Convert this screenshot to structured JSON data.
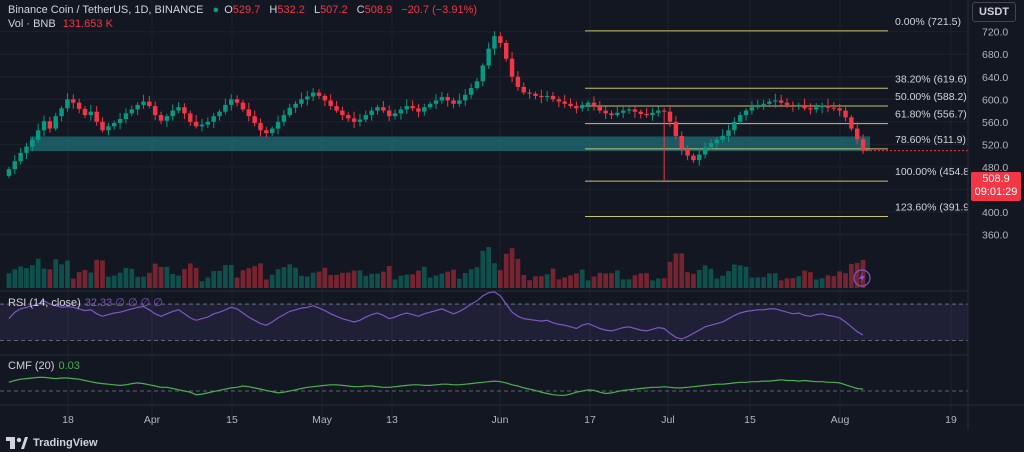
{
  "header": {
    "title": "Binance Coin / TetherUS, 1D, BINANCE",
    "o_label": "O",
    "o": "529.7",
    "h_label": "H",
    "h": "532.2",
    "l_label": "L",
    "l": "507.2",
    "c_label": "C",
    "c": "508.9",
    "change": "−20.7 (−3.91%)",
    "vol_label": "Vol · BNB",
    "vol": "131.653 K"
  },
  "currency": "USDT",
  "last_price": {
    "value": "508.9",
    "countdown": "09:01:29"
  },
  "branding": "TradingView",
  "colors": {
    "up": "#089981",
    "down": "#f23645",
    "fib": "#c9c26a",
    "zone": "#1f6f78",
    "rsi": "#7e57c2",
    "cmf": "#4caf50",
    "bg": "#131722"
  },
  "chart_data": [
    {
      "type": "candlestick",
      "title": "Binance Coin / TetherUS, 1D, BINANCE",
      "ylim": [
        360,
        740
      ],
      "y_ticks": [
        "720.0",
        "680.0",
        "640.0",
        "600.0",
        "560.0",
        "520.0",
        "480.0",
        "440.0",
        "400.0",
        "360.0"
      ],
      "x_ticks": [
        "18",
        "Apr",
        "15",
        "May",
        "13",
        "Jun",
        "17",
        "Jul",
        "15",
        "Aug",
        "19"
      ],
      "fibonacci": [
        {
          "label": "0.00% (721.5)",
          "value": 721.5
        },
        {
          "label": "38.20% (619.6)",
          "value": 619.6
        },
        {
          "label": "50.00% (588.2)",
          "value": 588.2
        },
        {
          "label": "61.80% (556.7)",
          "value": 556.7
        },
        {
          "label": "78.60% (511.9)",
          "value": 511.9
        },
        {
          "label": "100.00% (454.8)",
          "value": 454.8
        },
        {
          "label": "123.60% (391.9)",
          "value": 391.9
        }
      ],
      "support_zone": [
        508,
        534
      ],
      "close_series": [
        476,
        490,
        505,
        516,
        528,
        545,
        561,
        548,
        570,
        584,
        600,
        594,
        583,
        572,
        578,
        560,
        545,
        552,
        558,
        565,
        575,
        582,
        590,
        596,
        588,
        572,
        562,
        570,
        580,
        586,
        575,
        560,
        552,
        555,
        560,
        570,
        578,
        590,
        600,
        594,
        582,
        570,
        558,
        545,
        540,
        548,
        560,
        572,
        585,
        592,
        600,
        605,
        612,
        606,
        598,
        588,
        580,
        572,
        566,
        560,
        564,
        572,
        580,
        586,
        580,
        570,
        575,
        582,
        588,
        584,
        578,
        586,
        592,
        598,
        604,
        598,
        592,
        598,
        608,
        620,
        632,
        660,
        690,
        712,
        700,
        672,
        640,
        622,
        612,
        610,
        606,
        604,
        606,
        600,
        596,
        592,
        588,
        584,
        590,
        594,
        588,
        580,
        575,
        572,
        576,
        580,
        582,
        578,
        574,
        572,
        576,
        580,
        578,
        560,
        535,
        512,
        500,
        492,
        502,
        515,
        522,
        528,
        535,
        545,
        560,
        572,
        580,
        586,
        590,
        592,
        596,
        598,
        594,
        590,
        588,
        590,
        584,
        582,
        586,
        589,
        585,
        584,
        580,
        568,
        548,
        529,
        509
      ],
      "volume_panel": "histogram of daily volume, last bar 131.653 K BNB"
    },
    {
      "type": "line",
      "title": "RSI (14, close)",
      "legend_values": "32.33 ∅ ∅ ∅ ∅",
      "band": [
        25,
        70
      ],
      "ticks": [
        "75.00",
        "50.00",
        "25.00"
      ],
      "values": [
        52,
        60,
        64,
        66,
        68,
        70,
        74,
        70,
        68,
        66,
        67,
        66,
        64,
        62,
        63,
        58,
        55,
        57,
        59,
        60,
        62,
        64,
        66,
        67,
        63,
        58,
        55,
        58,
        61,
        63,
        58,
        53,
        50,
        52,
        54,
        58,
        60,
        63,
        66,
        64,
        59,
        54,
        50,
        46,
        44,
        48,
        53,
        57,
        61,
        63,
        65,
        66,
        68,
        65,
        62,
        58,
        55,
        52,
        50,
        48,
        50,
        54,
        57,
        59,
        56,
        52,
        54,
        57,
        59,
        57,
        55,
        58,
        60,
        62,
        64,
        61,
        58,
        61,
        65,
        70,
        74,
        80,
        84,
        85,
        80,
        70,
        60,
        55,
        52,
        51,
        50,
        49,
        50,
        47,
        45,
        44,
        42,
        40,
        44,
        46,
        43,
        40,
        38,
        37,
        39,
        41,
        42,
        40,
        38,
        37,
        39,
        41,
        40,
        34,
        29,
        27,
        30,
        34,
        38,
        42,
        44,
        46,
        48,
        52,
        56,
        59,
        61,
        62,
        63,
        63,
        64,
        64,
        62,
        60,
        58,
        59,
        56,
        55,
        57,
        58,
        56,
        55,
        53,
        48,
        42,
        36,
        32
      ]
    },
    {
      "type": "line",
      "title": "CMF (20)",
      "legend_values": "0.03",
      "ticks": [
        "0.50",
        "0.00"
      ],
      "values": [
        0.14,
        0.17,
        0.19,
        0.2,
        0.21,
        0.22,
        0.22,
        0.21,
        0.2,
        0.21,
        0.21,
        0.2,
        0.19,
        0.17,
        0.15,
        0.13,
        0.12,
        0.11,
        0.1,
        0.09,
        0.1,
        0.12,
        0.13,
        0.12,
        0.1,
        0.08,
        0.06,
        0.06,
        0.04,
        0.02,
        0.0,
        -0.02,
        -0.06,
        -0.05,
        -0.03,
        -0.01,
        0.01,
        0.03,
        0.05,
        0.06,
        0.08,
        0.07,
        0.05,
        0.03,
        0.01,
        -0.01,
        -0.03,
        -0.02,
        0.0,
        0.02,
        0.04,
        0.06,
        0.07,
        0.08,
        0.09,
        0.1,
        0.1,
        0.09,
        0.08,
        0.07,
        0.07,
        0.08,
        0.08,
        0.07,
        0.06,
        0.06,
        0.07,
        0.08,
        0.09,
        0.1,
        0.1,
        0.09,
        0.09,
        0.1,
        0.11,
        0.11,
        0.1,
        0.1,
        0.11,
        0.12,
        0.13,
        0.14,
        0.15,
        0.16,
        0.15,
        0.13,
        0.1,
        0.08,
        0.05,
        0.03,
        0.01,
        -0.02,
        -0.04,
        -0.06,
        -0.07,
        -0.07,
        -0.05,
        -0.02,
        0.0,
        0.02,
        0.01,
        -0.02,
        -0.04,
        -0.03,
        -0.01,
        0.01,
        0.02,
        0.03,
        0.04,
        0.05,
        0.06,
        0.06,
        0.07,
        0.06,
        0.05,
        0.05,
        0.06,
        0.07,
        0.08,
        0.09,
        0.1,
        0.11,
        0.11,
        0.12,
        0.13,
        0.14,
        0.14,
        0.15,
        0.15,
        0.16,
        0.16,
        0.17,
        0.18,
        0.17,
        0.17,
        0.16,
        0.17,
        0.16,
        0.15,
        0.15,
        0.14,
        0.14,
        0.13,
        0.1,
        0.07,
        0.04,
        0.03
      ]
    }
  ]
}
